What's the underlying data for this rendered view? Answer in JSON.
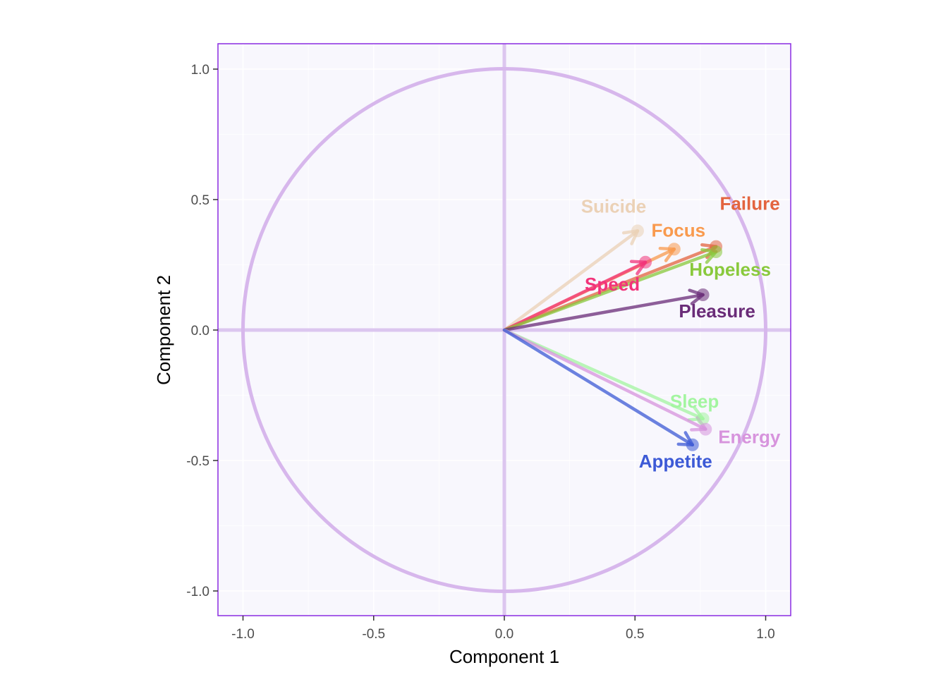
{
  "chart_data": {
    "type": "scatter",
    "title": "",
    "xlabel": "Component 1",
    "ylabel": "Component 2",
    "xlim": [
      -1.1,
      1.1
    ],
    "ylim": [
      -1.1,
      1.1
    ],
    "xticks": [
      -1.0,
      -0.5,
      0.0,
      0.5,
      1.0
    ],
    "yticks": [
      -1.0,
      -0.5,
      0.0,
      0.5,
      1.0
    ],
    "xtick_labels": [
      "-1.0",
      "-0.5",
      "0.0",
      "0.5",
      "1.0"
    ],
    "ytick_labels": [
      "-1.0",
      "-0.5",
      "0.0",
      "0.5",
      "1.0"
    ],
    "grid": true,
    "unit_circle_radius": 1.0,
    "colors": {
      "panel_background": "#f8f7fd",
      "panel_border": "#8a2be2",
      "circle": "#d7b7ec",
      "reference_lines": "#dcc6ef",
      "grid": "#ffffff"
    },
    "variables": [
      {
        "name": "Suicide",
        "x": 0.51,
        "y": 0.38,
        "color": "#ebd1b6"
      },
      {
        "name": "Focus",
        "x": 0.65,
        "y": 0.31,
        "color": "#f99a4e"
      },
      {
        "name": "Failure",
        "x": 0.81,
        "y": 0.32,
        "color": "#e3643f"
      },
      {
        "name": "Speed",
        "x": 0.54,
        "y": 0.26,
        "color": "#f2337a"
      },
      {
        "name": "Hopeless",
        "x": 0.81,
        "y": 0.3,
        "color": "#89c93c"
      },
      {
        "name": "Pleasure",
        "x": 0.76,
        "y": 0.135,
        "color": "#6a2c78"
      },
      {
        "name": "Sleep",
        "x": 0.76,
        "y": -0.34,
        "color": "#a3f5a0"
      },
      {
        "name": "Energy",
        "x": 0.77,
        "y": -0.38,
        "color": "#d794dd"
      },
      {
        "name": "Appetite",
        "x": 0.72,
        "y": -0.44,
        "color": "#3d5ad6"
      }
    ]
  }
}
